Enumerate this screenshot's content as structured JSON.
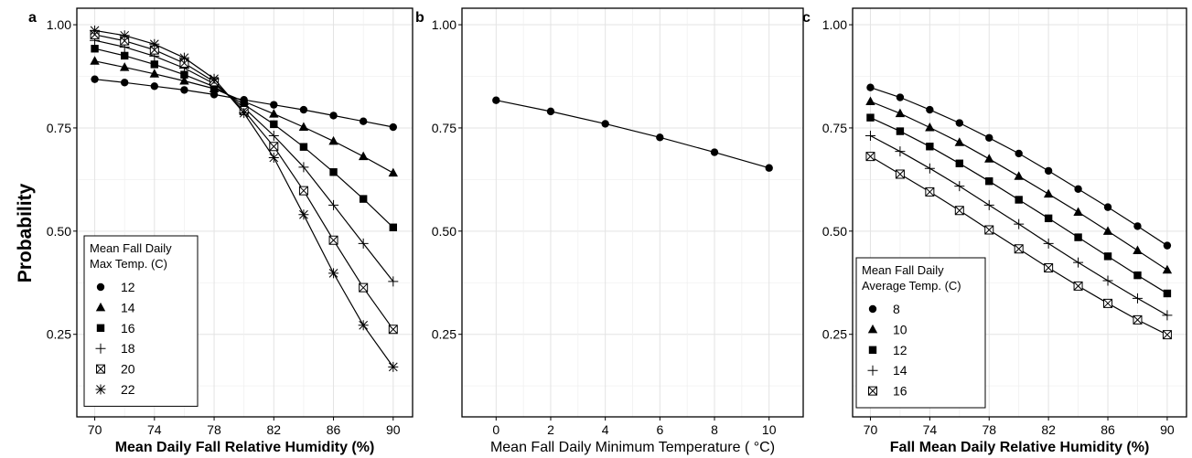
{
  "figure": {
    "y_label": "Probability",
    "y_ticks": [
      1.0,
      0.75,
      0.5,
      0.25
    ],
    "y_tick_labels": [
      "1.00",
      "0.75",
      "0.50",
      "0.25"
    ]
  },
  "chart_data": [
    {
      "panel": "a",
      "type": "line",
      "xlabel": "Mean Daily Fall Relative Humidity (%)",
      "ylabel": "Probability",
      "ylim": [
        0.05,
        1.04
      ],
      "xlim": [
        68.8,
        91.3
      ],
      "x_ticks": [
        70,
        74,
        78,
        82,
        86,
        90
      ],
      "x_tick_labels": [
        "70",
        "74",
        "78",
        "82",
        "86",
        "90"
      ],
      "grid": true,
      "legend": {
        "title_lines": [
          "Mean Fall Daily",
          "Max Temp. (C)"
        ],
        "position": "bottom-left"
      },
      "x": [
        70,
        72,
        74,
        76,
        78,
        80,
        82,
        84,
        86,
        88,
        90
      ],
      "series": [
        {
          "name": "12",
          "marker": "circle",
          "values": [
            0.868,
            0.86,
            0.851,
            0.842,
            0.831,
            0.818,
            0.806,
            0.794,
            0.78,
            0.766,
            0.752
          ]
        },
        {
          "name": "14",
          "marker": "triangle",
          "values": [
            0.912,
            0.897,
            0.881,
            0.864,
            0.845,
            0.814,
            0.784,
            0.752,
            0.718,
            0.681,
            0.641
          ]
        },
        {
          "name": "16",
          "marker": "square",
          "values": [
            0.942,
            0.925,
            0.904,
            0.879,
            0.85,
            0.807,
            0.759,
            0.704,
            0.643,
            0.578,
            0.509
          ]
        },
        {
          "name": "18",
          "marker": "plus",
          "values": [
            0.962,
            0.946,
            0.924,
            0.895,
            0.857,
            0.799,
            0.731,
            0.655,
            0.563,
            0.47,
            0.378
          ]
        },
        {
          "name": "20",
          "marker": "boxx",
          "values": [
            0.976,
            0.961,
            0.939,
            0.907,
            0.862,
            0.792,
            0.705,
            0.598,
            0.478,
            0.363,
            0.262
          ]
        },
        {
          "name": "22",
          "marker": "star",
          "values": [
            0.986,
            0.974,
            0.953,
            0.92,
            0.869,
            0.786,
            0.678,
            0.54,
            0.398,
            0.272,
            0.171
          ]
        }
      ]
    },
    {
      "panel": "b",
      "type": "line",
      "xlabel": "Mean Fall Daily Minimum Temperature ( °C)",
      "ylabel": "",
      "ylim": [
        0.05,
        1.04
      ],
      "xlim": [
        -1.25,
        11.25
      ],
      "x_ticks": [
        0,
        2,
        4,
        6,
        8,
        10
      ],
      "x_tick_labels": [
        "0",
        "2",
        "4",
        "6",
        "8",
        "10"
      ],
      "grid": true,
      "x": [
        0,
        2,
        4,
        6,
        8,
        10
      ],
      "series": [
        {
          "name": "",
          "marker": "circle",
          "values": [
            0.817,
            0.79,
            0.76,
            0.727,
            0.691,
            0.653
          ]
        }
      ]
    },
    {
      "panel": "c",
      "type": "line",
      "xlabel": "Fall Mean Daily Relative Humidity (%)",
      "ylabel": "",
      "ylim": [
        0.05,
        1.04
      ],
      "xlim": [
        68.8,
        91.3
      ],
      "x_ticks": [
        70,
        74,
        78,
        82,
        86,
        90
      ],
      "x_tick_labels": [
        "70",
        "74",
        "78",
        "82",
        "86",
        "90"
      ],
      "grid": true,
      "legend": {
        "title_lines": [
          "Mean Fall Daily",
          "Average Temp. (C)"
        ],
        "position": "bottom-left"
      },
      "x": [
        70,
        72,
        74,
        76,
        78,
        80,
        82,
        84,
        86,
        88,
        90
      ],
      "series": [
        {
          "name": "8",
          "marker": "circle",
          "values": [
            0.848,
            0.824,
            0.794,
            0.762,
            0.726,
            0.688,
            0.646,
            0.602,
            0.558,
            0.512,
            0.465
          ]
        },
        {
          "name": "10",
          "marker": "triangle",
          "values": [
            0.814,
            0.785,
            0.751,
            0.715,
            0.675,
            0.633,
            0.59,
            0.546,
            0.5,
            0.453,
            0.406
          ]
        },
        {
          "name": "12",
          "marker": "square",
          "values": [
            0.775,
            0.742,
            0.705,
            0.664,
            0.621,
            0.576,
            0.531,
            0.485,
            0.439,
            0.393,
            0.349
          ]
        },
        {
          "name": "14",
          "marker": "plus",
          "values": [
            0.731,
            0.693,
            0.652,
            0.609,
            0.563,
            0.517,
            0.47,
            0.424,
            0.38,
            0.337,
            0.296
          ]
        },
        {
          "name": "16",
          "marker": "boxx",
          "values": [
            0.681,
            0.638,
            0.595,
            0.55,
            0.503,
            0.457,
            0.411,
            0.367,
            0.325,
            0.285,
            0.249
          ]
        }
      ]
    }
  ]
}
